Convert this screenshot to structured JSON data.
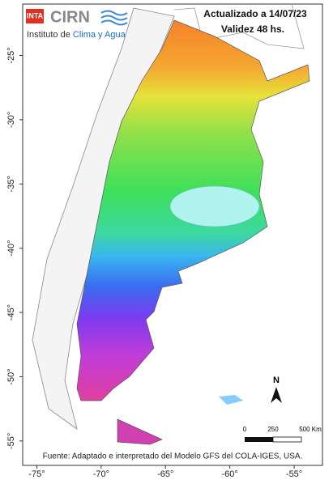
{
  "header": {
    "logo": "INTA",
    "brand": "CIRN",
    "institute": "Instituto de",
    "institute_highlight": "Clima y Agua",
    "updated": "Actualizado a 14/07/23",
    "validity": "Validez 48 hs."
  },
  "map": {
    "lon_range": [
      -76.1,
      -52.8
    ],
    "lat_range": [
      -21,
      -56.9
    ],
    "lon_ticks": [
      {
        "value": -75,
        "label": "-75°"
      },
      {
        "value": -70,
        "label": "-70°"
      },
      {
        "value": -65,
        "label": "-65°"
      },
      {
        "value": -60,
        "label": "-60°"
      },
      {
        "value": -55,
        "label": "-55°"
      }
    ],
    "lat_ticks": [
      {
        "value": -25,
        "label": "-25°"
      },
      {
        "value": -30,
        "label": "-30°"
      },
      {
        "value": -35,
        "label": "-35°"
      },
      {
        "value": -40,
        "label": "-40°"
      },
      {
        "value": -45,
        "label": "-45°"
      },
      {
        "value": -50,
        "label": "-50°"
      },
      {
        "value": -55,
        "label": "-55°"
      }
    ]
  },
  "scale": {
    "labels": [
      "0",
      "250",
      "500 Km"
    ]
  },
  "north": "N",
  "source": "Fuente: Adaptado e interpretado del Modelo GFS del COLA-IGES, USA."
}
